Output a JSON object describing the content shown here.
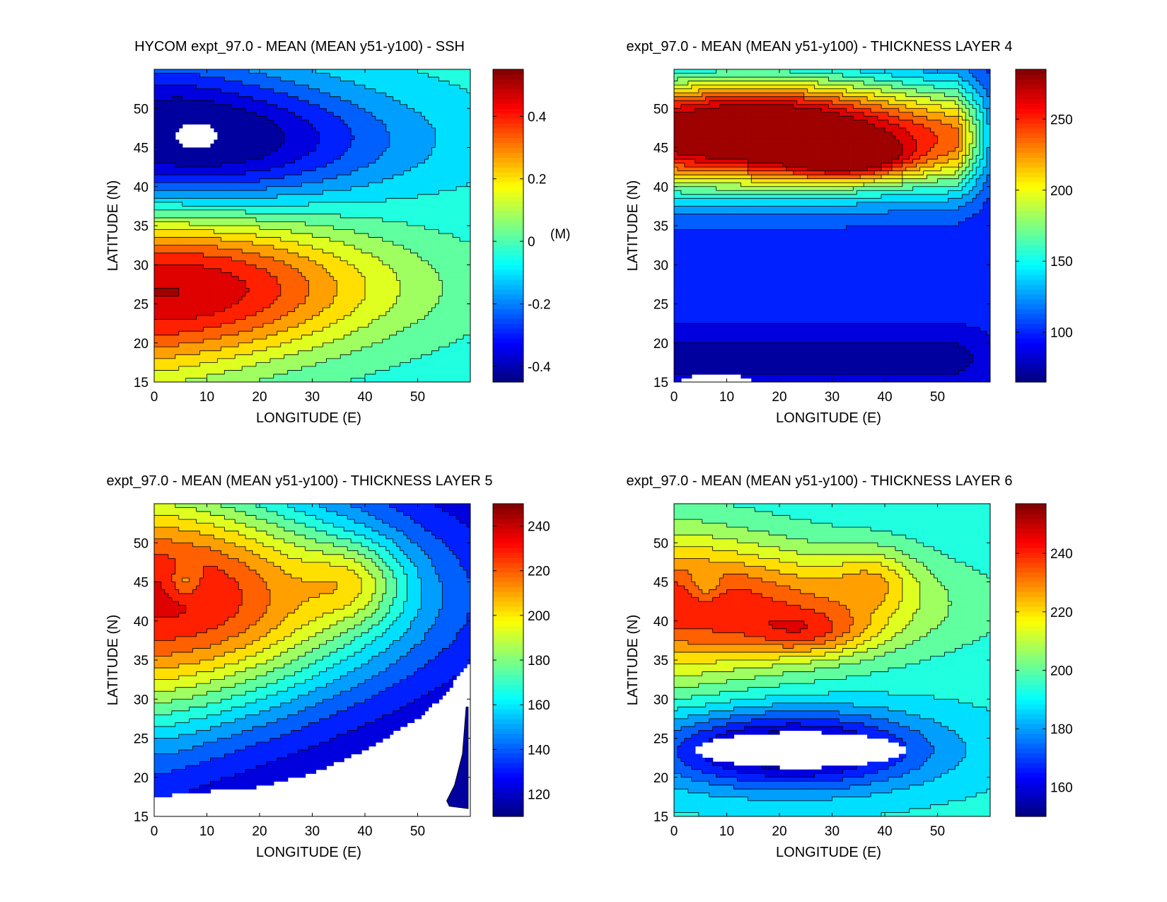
{
  "chart_data": [
    {
      "type": "heatmap",
      "subtype": "filled-contour",
      "title": "HYCOM expt_97.0 - MEAN (MEAN y51-y100) - SSH",
      "xlabel": "LONGITUDE (E)",
      "ylabel": "LATITUDE (N)",
      "xlim": [
        0,
        60
      ],
      "ylim": [
        15,
        55
      ],
      "xticks": [
        0,
        10,
        20,
        30,
        40,
        50
      ],
      "yticks": [
        15,
        20,
        25,
        30,
        35,
        40,
        45,
        50
      ],
      "colorbar": {
        "min": -0.45,
        "max": 0.55,
        "ticks": [
          -0.4,
          -0.2,
          0,
          0.2,
          0.4
        ],
        "tick_labels": [
          "-0.4",
          "-0.2",
          "0",
          "0.2",
          "0.4"
        ],
        "unit": "(M)"
      },
      "field": {
        "background": -0.05,
        "features": [
          {
            "kind": "gyre",
            "lon": 5,
            "lat": 46,
            "value": -0.45,
            "lon_extent": 48,
            "lat_halfwidth": 10
          },
          {
            "kind": "gyre",
            "lon": 3,
            "lat": 27,
            "value": 0.55,
            "lon_extent": 50,
            "lat_halfwidth": 11
          }
        ],
        "masked_regions": [
          {
            "kind": "blob",
            "lon": 8,
            "lat": 46.5,
            "rx": 4,
            "ry": 1.7
          }
        ]
      }
    },
    {
      "type": "heatmap",
      "subtype": "filled-contour",
      "title": "expt_97.0 - MEAN (MEAN y51-y100) - THICKNESS LAYER 4",
      "xlabel": "LONGITUDE (E)",
      "ylabel": "LATITUDE (N)",
      "xlim": [
        0,
        60
      ],
      "ylim": [
        15,
        55
      ],
      "xticks": [
        0,
        10,
        20,
        30,
        40,
        50
      ],
      "yticks": [
        15,
        20,
        25,
        30,
        35,
        40,
        45,
        50
      ],
      "colorbar": {
        "min": 65,
        "max": 285,
        "ticks": [
          100,
          150,
          200,
          250
        ],
        "tick_labels": [
          "100",
          "150",
          "200",
          "250"
        ],
        "unit": ""
      },
      "field": {
        "background": 95,
        "features": [
          {
            "kind": "band",
            "lat": 46,
            "width": 7,
            "value": 120
          },
          {
            "kind": "blob",
            "lon": 15,
            "lat": 48,
            "rx": 30,
            "ry": 7,
            "value": 110
          },
          {
            "kind": "blob",
            "lon": 33,
            "lat": 43.5,
            "rx": 11,
            "ry": 2.5,
            "value": 75
          },
          {
            "kind": "blob",
            "lon": 5,
            "lat": 47,
            "rx": 5,
            "ry": 2,
            "value": -30
          },
          {
            "kind": "band",
            "lat": 18,
            "width": 3,
            "value": -25
          }
        ],
        "masked_regions": [
          {
            "kind": "blob",
            "lon": 8,
            "lat": 15.3,
            "rx": 7,
            "ry": 0.6
          }
        ]
      }
    },
    {
      "type": "heatmap",
      "subtype": "filled-contour",
      "title": "expt_97.0 - MEAN (MEAN y51-y100) - THICKNESS LAYER 5",
      "xlabel": "LONGITUDE (E)",
      "ylabel": "LATITUDE (N)",
      "xlim": [
        0,
        60
      ],
      "ylim": [
        15,
        55
      ],
      "xticks": [
        0,
        10,
        20,
        30,
        40,
        50
      ],
      "yticks": [
        15,
        20,
        25,
        30,
        35,
        40,
        45,
        50
      ],
      "colorbar": {
        "min": 110,
        "max": 250,
        "ticks": [
          120,
          140,
          160,
          180,
          200,
          220,
          240
        ],
        "tick_labels": [
          "120",
          "140",
          "160",
          "180",
          "200",
          "220",
          "240"
        ],
        "unit": ""
      },
      "field": {
        "background": 115,
        "features": [
          {
            "kind": "gyre",
            "lon": 3,
            "lat": 43,
            "value": 120,
            "lon_extent": 55,
            "lat_halfwidth": 17
          },
          {
            "kind": "blob",
            "lon": 38,
            "lat": 45,
            "rx": 9,
            "ry": 5,
            "value": 25
          },
          {
            "kind": "blob",
            "lon": 6,
            "lat": 45,
            "rx": 3,
            "ry": 2,
            "value": -18
          }
        ],
        "masked_regions": [
          {
            "kind": "below-curve",
            "points": [
              [
                0,
                17.5
              ],
              [
                10,
                18.2
              ],
              [
                20,
                18.8
              ],
              [
                30,
                20.5
              ],
              [
                40,
                23.5
              ],
              [
                50,
                27.5
              ],
              [
                55,
                30.5
              ],
              [
                60,
                35
              ]
            ]
          }
        ],
        "extra_patches": [
          {
            "kind": "polygon",
            "value": 115,
            "points": [
              [
                55.5,
                17
              ],
              [
                57,
                19
              ],
              [
                58.5,
                23
              ],
              [
                59.2,
                29
              ],
              [
                59.6,
                29
              ],
              [
                59.6,
                16
              ],
              [
                56,
                16.3
              ]
            ]
          }
        ]
      }
    },
    {
      "type": "heatmap",
      "subtype": "filled-contour",
      "title": "expt_97.0 - MEAN (MEAN y51-y100) - THICKNESS LAYER 6",
      "xlabel": "LONGITUDE (E)",
      "ylabel": "LATITUDE (N)",
      "xlim": [
        0,
        60
      ],
      "ylim": [
        15,
        55
      ],
      "xticks": [
        0,
        10,
        20,
        30,
        40,
        50
      ],
      "yticks": [
        15,
        20,
        25,
        30,
        35,
        40,
        45,
        50
      ],
      "colorbar": {
        "min": 150,
        "max": 257,
        "ticks": [
          160,
          180,
          200,
          220,
          240
        ],
        "tick_labels": [
          "160",
          "180",
          "200",
          "220",
          "240"
        ],
        "unit": ""
      },
      "field": {
        "background": 192,
        "features": [
          {
            "kind": "gyre",
            "lon": 4,
            "lat": 42,
            "value": 50,
            "lon_extent": 50,
            "lat_halfwidth": 9
          },
          {
            "kind": "blob",
            "lon": 26,
            "lat": 38.5,
            "rx": 12,
            "ry": 3,
            "value": 20
          },
          {
            "kind": "blob",
            "lon": 38,
            "lat": 45.5,
            "rx": 8,
            "ry": 4,
            "value": 15
          },
          {
            "kind": "blob",
            "lon": 22,
            "lat": 23.5,
            "rx": 26,
            "ry": 5,
            "value": -45
          },
          {
            "kind": "blob",
            "lon": 6,
            "lat": 44.5,
            "rx": 3,
            "ry": 2,
            "value": -12
          }
        ],
        "masked_regions": [
          {
            "kind": "blob",
            "lon": 24,
            "lat": 23.5,
            "rx": 20,
            "ry": 2.3
          }
        ]
      }
    }
  ]
}
